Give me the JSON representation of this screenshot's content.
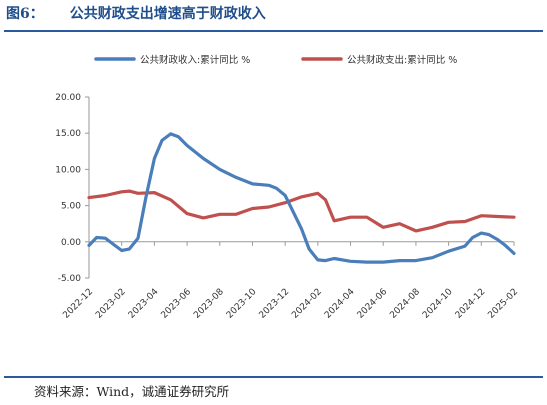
{
  "figure": {
    "number": "图6：",
    "title": "公共财政支出增速高于财政收入",
    "source": "资料来源：Wind，诚通证券研究所"
  },
  "colors": {
    "revenue": "#4a7ebb",
    "expenditure": "#c0504d",
    "title": "#1f4e8c",
    "rule": "#2c5aa0"
  },
  "chart_data": {
    "type": "line",
    "legend_position": "top",
    "grid": false,
    "ylim": [
      -5,
      20
    ],
    "yticks": [
      "20.00",
      "15.00",
      "10.00",
      "5.00",
      "0.00",
      "-5.00"
    ],
    "ytick_values": [
      20,
      15,
      10,
      5,
      0,
      -5
    ],
    "xlim": [
      "2022-12",
      "2025-02"
    ],
    "xticks": [
      "2022-12",
      "2023-02",
      "2023-04",
      "2023-06",
      "2023-08",
      "2023-10",
      "2023-12",
      "2024-02",
      "2024-04",
      "2024-06",
      "2024-08",
      "2024-10",
      "2024-12",
      "2025-02"
    ],
    "series": [
      {
        "name": "公共财政收入:累计同比 %",
        "color": "#4a7ebb",
        "points": [
          [
            "2022-12",
            -0.5
          ],
          [
            "2022-12-15",
            0.6
          ],
          [
            "2023-01",
            0.5
          ],
          [
            "2023-01-15",
            -0.3
          ],
          [
            "2023-02",
            -1.2
          ],
          [
            "2023-02-15",
            -1.0
          ],
          [
            "2023-03",
            0.5
          ],
          [
            "2023-03-15",
            6.0
          ],
          [
            "2023-04",
            11.5
          ],
          [
            "2023-04-15",
            14.0
          ],
          [
            "2023-05",
            14.9
          ],
          [
            "2023-05-15",
            14.5
          ],
          [
            "2023-06",
            13.3
          ],
          [
            "2023-07",
            11.5
          ],
          [
            "2023-08",
            10.0
          ],
          [
            "2023-09",
            8.9
          ],
          [
            "2023-10",
            8.0
          ],
          [
            "2023-11",
            7.8
          ],
          [
            "2023-11-15",
            7.4
          ],
          [
            "2023-12",
            6.4
          ],
          [
            "2024-01",
            1.8
          ],
          [
            "2024-01-15",
            -1.0
          ],
          [
            "2024-02",
            -2.5
          ],
          [
            "2024-02-15",
            -2.6
          ],
          [
            "2024-03",
            -2.3
          ],
          [
            "2024-04",
            -2.7
          ],
          [
            "2024-05",
            -2.8
          ],
          [
            "2024-06",
            -2.8
          ],
          [
            "2024-07",
            -2.6
          ],
          [
            "2024-08",
            -2.6
          ],
          [
            "2024-09",
            -2.2
          ],
          [
            "2024-10",
            -1.3
          ],
          [
            "2024-11",
            -0.6
          ],
          [
            "2024-11-15",
            0.6
          ],
          [
            "2024-12",
            1.2
          ],
          [
            "2024-12-15",
            1.0
          ],
          [
            "2025-01",
            0.3
          ],
          [
            "2025-01-15",
            -0.5
          ],
          [
            "2025-02",
            -1.6
          ]
        ]
      },
      {
        "name": "公共财政支出:累计同比 %",
        "color": "#c0504d",
        "points": [
          [
            "2022-12",
            6.1
          ],
          [
            "2023-01",
            6.4
          ],
          [
            "2023-02",
            6.9
          ],
          [
            "2023-02-15",
            7.0
          ],
          [
            "2023-03",
            6.7
          ],
          [
            "2023-04",
            6.8
          ],
          [
            "2023-05",
            5.8
          ],
          [
            "2023-06",
            3.9
          ],
          [
            "2023-07",
            3.3
          ],
          [
            "2023-08",
            3.8
          ],
          [
            "2023-09",
            3.8
          ],
          [
            "2023-10",
            4.6
          ],
          [
            "2023-11",
            4.8
          ],
          [
            "2023-12",
            5.4
          ],
          [
            "2024-01",
            6.2
          ],
          [
            "2024-02",
            6.7
          ],
          [
            "2024-02-15",
            5.8
          ],
          [
            "2024-03",
            2.9
          ],
          [
            "2024-04",
            3.4
          ],
          [
            "2024-05",
            3.4
          ],
          [
            "2024-06",
            2.0
          ],
          [
            "2024-07",
            2.5
          ],
          [
            "2024-08",
            1.5
          ],
          [
            "2024-09",
            2.0
          ],
          [
            "2024-10",
            2.7
          ],
          [
            "2024-11",
            2.8
          ],
          [
            "2024-12",
            3.6
          ],
          [
            "2025-01",
            3.5
          ],
          [
            "2025-02",
            3.4
          ]
        ]
      }
    ]
  }
}
